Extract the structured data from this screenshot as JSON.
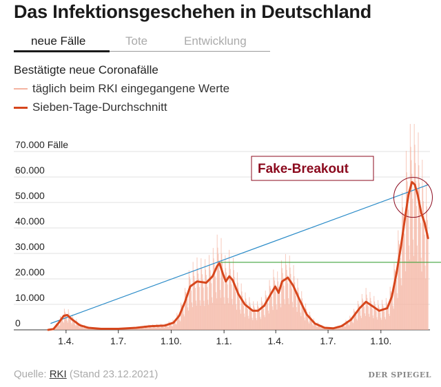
{
  "header": {
    "title": "Das Infektionsgeschehen in Deutschland"
  },
  "tabs": [
    {
      "label": "neue Fälle",
      "active": true
    },
    {
      "label": "Tote",
      "active": false
    },
    {
      "label": "Entwicklung",
      "active": false
    }
  ],
  "legend": {
    "title": "Bestätigte neue Coronafälle",
    "items": [
      {
        "label": "täglich beim RKI eingegangene Werte",
        "color": "#f4b3a0"
      },
      {
        "label": "Sieben-Tage-Durchschnitt",
        "color": "#d6461c"
      }
    ]
  },
  "source": {
    "prefix": "Quelle:",
    "link": "RKI",
    "suffix": "(Stand 23.12.2021)"
  },
  "brand": {
    "name": "DER SPIEGEL"
  },
  "annotation": {
    "label": "Fake-Breakout",
    "color": "#8b0a1e"
  },
  "chart_data": {
    "type": "area",
    "y_unit": "Fälle",
    "ylim": [
      0,
      70000
    ],
    "yticks": [
      0,
      10000,
      20000,
      30000,
      40000,
      50000,
      60000,
      70000
    ],
    "ytick_labels": [
      "0",
      "10.000",
      "20.000",
      "30.000",
      "40.000",
      "50.000",
      "60.000",
      "70.000"
    ],
    "xlim": [
      "2020-03-01",
      "2021-12-23"
    ],
    "xticks": [
      {
        "date": "2020-04-01",
        "label": "1.4."
      },
      {
        "date": "2020-07-01",
        "label": "1.7."
      },
      {
        "date": "2020-10-01",
        "label": "1.10."
      },
      {
        "date": "2021-01-01",
        "label": "1.1."
      },
      {
        "date": "2021-04-01",
        "label": "1.4."
      },
      {
        "date": "2021-07-01",
        "label": "1.7."
      },
      {
        "date": "2021-10-01",
        "label": "1.10."
      }
    ],
    "grid": "horizontal",
    "series": [
      {
        "name": "Sieben-Tage-Durchschnitt",
        "color": "#d6461c",
        "points": [
          [
            "2020-03-01",
            0
          ],
          [
            "2020-03-10",
            300
          ],
          [
            "2020-03-20",
            3000
          ],
          [
            "2020-03-28",
            5500
          ],
          [
            "2020-04-03",
            5800
          ],
          [
            "2020-04-12",
            4000
          ],
          [
            "2020-04-25",
            1800
          ],
          [
            "2020-05-10",
            800
          ],
          [
            "2020-06-01",
            400
          ],
          [
            "2020-07-01",
            400
          ],
          [
            "2020-08-01",
            800
          ],
          [
            "2020-08-25",
            1400
          ],
          [
            "2020-09-20",
            1700
          ],
          [
            "2020-10-05",
            2800
          ],
          [
            "2020-10-15",
            5500
          ],
          [
            "2020-10-25",
            11000
          ],
          [
            "2020-11-03",
            17000
          ],
          [
            "2020-11-15",
            19000
          ],
          [
            "2020-12-01",
            18500
          ],
          [
            "2020-12-12",
            21000
          ],
          [
            "2020-12-20",
            25000
          ],
          [
            "2020-12-24",
            26200
          ],
          [
            "2020-12-30",
            22000
          ],
          [
            "2021-01-04",
            19000
          ],
          [
            "2021-01-10",
            21000
          ],
          [
            "2021-01-16",
            19500
          ],
          [
            "2021-01-26",
            14000
          ],
          [
            "2021-02-06",
            10000
          ],
          [
            "2021-02-20",
            7500
          ],
          [
            "2021-03-01",
            7500
          ],
          [
            "2021-03-12",
            9500
          ],
          [
            "2021-03-22",
            13500
          ],
          [
            "2021-03-31",
            17000
          ],
          [
            "2021-04-06",
            14500
          ],
          [
            "2021-04-12",
            19000
          ],
          [
            "2021-04-22",
            20500
          ],
          [
            "2021-05-01",
            17500
          ],
          [
            "2021-05-12",
            12000
          ],
          [
            "2021-05-25",
            6000
          ],
          [
            "2021-06-08",
            2500
          ],
          [
            "2021-06-25",
            800
          ],
          [
            "2021-07-10",
            600
          ],
          [
            "2021-07-25",
            1500
          ],
          [
            "2021-08-10",
            4000
          ],
          [
            "2021-08-25",
            8500
          ],
          [
            "2021-09-05",
            11000
          ],
          [
            "2021-09-15",
            9500
          ],
          [
            "2021-09-28",
            7500
          ],
          [
            "2021-10-12",
            8500
          ],
          [
            "2021-10-20",
            13000
          ],
          [
            "2021-10-28",
            22000
          ],
          [
            "2021-11-05",
            33000
          ],
          [
            "2021-11-12",
            44000
          ],
          [
            "2021-11-18",
            53000
          ],
          [
            "2021-11-24",
            58000
          ],
          [
            "2021-11-29",
            57000
          ],
          [
            "2021-12-04",
            53000
          ],
          [
            "2021-12-10",
            46000
          ],
          [
            "2021-12-16",
            42000
          ],
          [
            "2021-12-22",
            36000
          ]
        ]
      },
      {
        "name": "täglich beim RKI eingegangene Werte",
        "color": "#f4b3a0",
        "weekly_amplitude": 0.55
      }
    ],
    "overlays": [
      {
        "type": "trendline",
        "color": "#2a8bc8",
        "from": [
          "2020-03-05",
          2500
        ],
        "to": [
          "2021-12-23",
          57000
        ]
      },
      {
        "type": "horizontal_line",
        "color": "#3fa33b",
        "y": 26500
      },
      {
        "type": "circle",
        "color": "#8b0a1e",
        "around": [
          "2021-11-26",
          52000
        ]
      }
    ]
  }
}
